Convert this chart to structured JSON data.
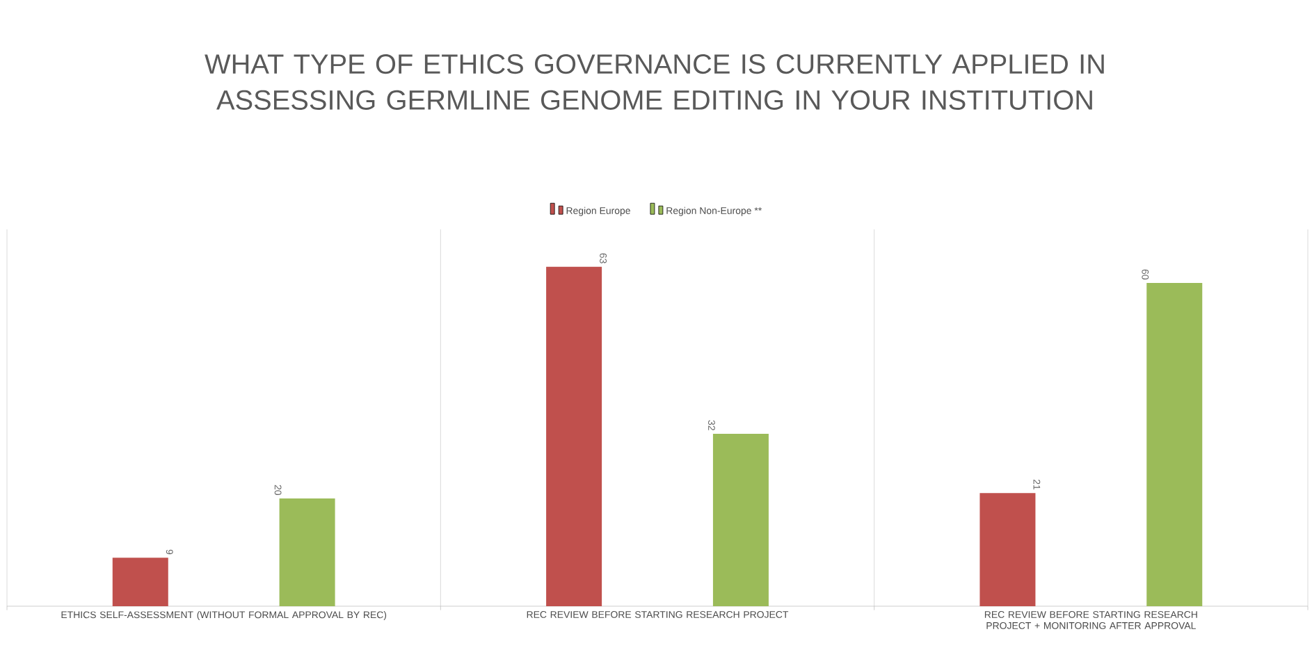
{
  "chart_data": {
    "type": "bar",
    "title": "WHAT TYPE OF ETHICS GOVERNANCE IS CURRENTLY APPLIED IN ASSESSING GERMLINE GENOME EDITING IN YOUR INSTITUTION",
    "categories": [
      "ETHICS SELF-ASSESSMENT (WITHOUT FORMAL APPROVAL BY REC)",
      "REC REVIEW BEFORE STARTING RESEARCH PROJECT",
      "REC REVIEW BEFORE STARTING RESEARCH PROJECT + MONITORING AFTER APPROVAL"
    ],
    "series": [
      {
        "name": "Region Europe",
        "color": "#c0504d",
        "values": [
          9,
          63,
          21
        ]
      },
      {
        "name": "Region Non-Europe **",
        "color": "#9bbb59",
        "values": [
          20,
          32,
          60
        ]
      }
    ],
    "data_labels": true,
    "legend": "top",
    "grid": "x"
  }
}
